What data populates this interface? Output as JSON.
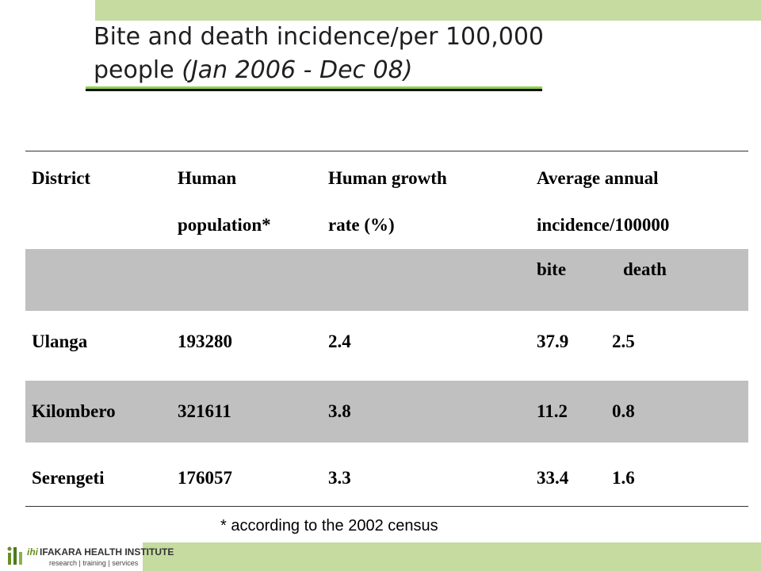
{
  "title": {
    "line1": "Bite and death incidence/per 100,000",
    "line2_plain": "people ",
    "line2_italic": "(Jan 2006 - Dec 08)"
  },
  "table": {
    "headers": {
      "district": "District",
      "population_l1": "Human",
      "population_l2": "population*",
      "growth_l1": "Human growth",
      "growth_l2": "rate (%)",
      "incidence_l1": "Average annual",
      "incidence_l2": "incidence/100000"
    },
    "subheaders": {
      "bite": "bite",
      "death": "death"
    },
    "rows": [
      {
        "district": "Ulanga",
        "population": "193280",
        "growth": "2.4",
        "bite": "37.9",
        "death": "2.5"
      },
      {
        "district": "Kilombero",
        "population": "321611",
        "growth": "3.8",
        "bite": "11.2",
        "death": "0.8"
      },
      {
        "district": "Serengeti",
        "population": "176057",
        "growth": "3.3",
        "bite": "33.4",
        "death": "1.6"
      }
    ]
  },
  "footnote": "* according to the 2002 census",
  "footer": {
    "logo_abbrev": "ihi",
    "logo_name": "IFAKARA HEALTH INSTITUTE",
    "logo_tagline": "research | training | services"
  },
  "colors": {
    "band": "#c6dba0",
    "accent_line": "#92d050",
    "shaded_row": "#c0c0c0"
  }
}
